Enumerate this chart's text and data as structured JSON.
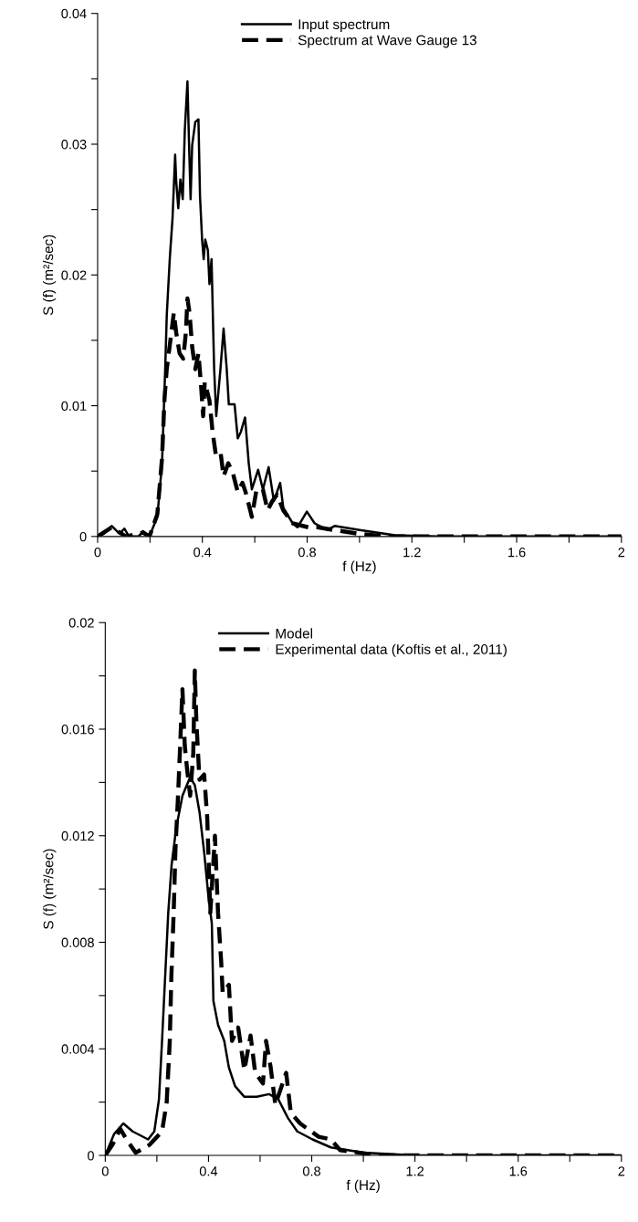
{
  "chart_data": [
    {
      "type": "line",
      "xlabel": "f (Hz)",
      "ylabel": "S (f) (m²/sec)",
      "xlim": [
        0,
        2
      ],
      "ylim": [
        0,
        0.04
      ],
      "xticks": [
        0,
        {
          "value": 0.2,
          "label": null
        },
        0.4,
        {
          "value": 0.6,
          "label": null
        },
        0.8,
        {
          "value": 1.0,
          "label": null
        },
        1.2,
        {
          "value": 1.4,
          "label": null
        },
        1.6,
        {
          "value": 1.8,
          "label": null
        },
        2
      ],
      "yticks": [
        0,
        {
          "value": 0.005,
          "label": null
        },
        0.01,
        {
          "value": 0.015,
          "label": null
        },
        0.02,
        {
          "value": 0.025,
          "label": null
        },
        0.03,
        {
          "value": 0.035,
          "label": null
        },
        0.04
      ],
      "legend": "top",
      "grid": false,
      "series": [
        {
          "name": "Input spectrum",
          "color": "#000000",
          "line_style": "solid",
          "x": [
            0,
            0.024,
            0.054,
            0.084,
            0.102,
            0.12,
            0.156,
            0.174,
            0.198,
            0.228,
            0.246,
            0.258,
            0.264,
            0.276,
            0.286,
            0.296,
            0.3,
            0.308,
            0.316,
            0.325,
            0.333,
            0.343,
            0.349,
            0.355,
            0.361,
            0.373,
            0.385,
            0.391,
            0.399,
            0.405,
            0.411,
            0.421,
            0.427,
            0.435,
            0.445,
            0.453,
            0.469,
            0.481,
            0.493,
            0.501,
            0.523,
            0.535,
            0.547,
            0.563,
            0.577,
            0.589,
            0.613,
            0.631,
            0.653,
            0.673,
            0.697,
            0.709,
            0.745,
            0.763,
            0.799,
            0.829,
            0.877,
            0.905,
            1.0,
            1.136,
            1.3,
            1.6,
            2.0
          ],
          "values": [
            0,
            0.0002,
            0.0008,
            0.0002,
            0.0006,
            0,
            0,
            0.0004,
            0,
            0.0015,
            0.0056,
            0.0128,
            0.0169,
            0.0214,
            0.0243,
            0.0292,
            0.0272,
            0.0251,
            0.0273,
            0.0258,
            0.0311,
            0.0348,
            0.0301,
            0.0258,
            0.0299,
            0.0317,
            0.0319,
            0.026,
            0.0227,
            0.0212,
            0.0227,
            0.0219,
            0.0193,
            0.0212,
            0.0128,
            0.0092,
            0.0128,
            0.0159,
            0.0128,
            0.0101,
            0.0101,
            0.0075,
            0.008,
            0.0091,
            0.0056,
            0.0036,
            0.0051,
            0.0036,
            0.0053,
            0.0027,
            0.0041,
            0.0022,
            0.001,
            0.0007,
            0.0019,
            0.001,
            0.0005,
            0.0008,
            0.0005,
            0.0001,
            0,
            0,
            0
          ]
        },
        {
          "name": "Spectrum at Wave Gauge 13",
          "color": "#000000",
          "line_style": "dashed",
          "x": [
            0,
            0.054,
            0.108,
            0.174,
            0.198,
            0.228,
            0.246,
            0.255,
            0.264,
            0.276,
            0.291,
            0.3,
            0.313,
            0.327,
            0.337,
            0.343,
            0.351,
            0.361,
            0.373,
            0.385,
            0.394,
            0.403,
            0.409,
            0.427,
            0.439,
            0.451,
            0.469,
            0.481,
            0.499,
            0.517,
            0.535,
            0.553,
            0.565,
            0.589,
            0.607,
            0.631,
            0.649,
            0.667,
            0.685,
            0.709,
            0.745,
            0.805,
            0.84,
            0.9,
            1.0,
            1.1,
            1.3,
            1.6,
            2.0
          ],
          "values": [
            0,
            0.0007,
            0,
            0.0003,
            0,
            0.0017,
            0.006,
            0.0104,
            0.0128,
            0.0147,
            0.0171,
            0.0156,
            0.014,
            0.0136,
            0.0156,
            0.0182,
            0.0171,
            0.0145,
            0.0128,
            0.014,
            0.0118,
            0.0092,
            0.0118,
            0.0104,
            0.008,
            0.0063,
            0.0065,
            0.0046,
            0.0056,
            0.0048,
            0.0034,
            0.0041,
            0.0034,
            0.0015,
            0.0036,
            0.0036,
            0.002,
            0.0027,
            0.0032,
            0.002,
            0.001,
            0.0007,
            0.0007,
            0.0005,
            0.0002,
            0,
            0,
            0,
            0
          ]
        }
      ]
    },
    {
      "type": "line",
      "xlabel": "f (Hz)",
      "ylabel": "S (f) (m²/sec)",
      "xlim": [
        0,
        2
      ],
      "ylim": [
        0,
        0.02
      ],
      "xticks": [
        0,
        {
          "value": 0.2,
          "label": null
        },
        0.4,
        {
          "value": 0.6,
          "label": null
        },
        0.8,
        {
          "value": 1.0,
          "label": null
        },
        1.2,
        {
          "value": 1.4,
          "label": null
        },
        1.6,
        {
          "value": 1.8,
          "label": null
        },
        2
      ],
      "yticks": [
        0,
        {
          "value": 0.002,
          "label": null
        },
        0.004,
        {
          "value": 0.006,
          "label": null
        },
        0.008,
        {
          "value": 0.01,
          "label": null
        },
        0.012,
        {
          "value": 0.014,
          "label": null
        },
        0.016,
        {
          "value": 0.018,
          "label": null
        },
        0.02
      ],
      "legend": "top",
      "grid": false,
      "series": [
        {
          "name": "Model",
          "color": "#000000",
          "line_style": "solid",
          "x": [
            0,
            0.034,
            0.07,
            0.106,
            0.166,
            0.19,
            0.208,
            0.22,
            0.232,
            0.244,
            0.257,
            0.275,
            0.299,
            0.329,
            0.347,
            0.365,
            0.383,
            0.401,
            0.413,
            0.419,
            0.437,
            0.461,
            0.479,
            0.503,
            0.539,
            0.587,
            0.635,
            0.671,
            0.708,
            0.744,
            0.803,
            0.874,
            1.0,
            1.2,
            1.6,
            2.0
          ],
          "values": [
            0,
            0.0008,
            0.0012,
            0.0009,
            0.0006,
            0.0009,
            0.0021,
            0.0043,
            0.0067,
            0.0091,
            0.0109,
            0.0123,
            0.0135,
            0.0142,
            0.0139,
            0.0129,
            0.0114,
            0.0096,
            0.0087,
            0.0058,
            0.0049,
            0.0043,
            0.0033,
            0.0026,
            0.0022,
            0.0022,
            0.0023,
            0.0021,
            0.0014,
            0.0009,
            0.0006,
            0.0003,
            0.0001,
            0,
            0,
            0
          ]
        },
        {
          "name": "Experimental data (Koftis et al., 2011)",
          "color": "#000000",
          "line_style": "dashed",
          "x": [
            0,
            0.028,
            0.058,
            0.082,
            0.118,
            0.172,
            0.22,
            0.238,
            0.25,
            0.256,
            0.265,
            0.272,
            0.281,
            0.289,
            0.299,
            0.308,
            0.317,
            0.329,
            0.341,
            0.347,
            0.353,
            0.365,
            0.383,
            0.395,
            0.407,
            0.425,
            0.437,
            0.449,
            0.455,
            0.479,
            0.491,
            0.515,
            0.539,
            0.563,
            0.581,
            0.611,
            0.623,
            0.641,
            0.659,
            0.701,
            0.719,
            0.755,
            0.827,
            0.874,
            0.91,
            1.06,
            1.3,
            1.6,
            2.0
          ],
          "values": [
            0,
            0.0004,
            0.001,
            0.0006,
            0.0001,
            0.0004,
            0.0009,
            0.002,
            0.0043,
            0.0067,
            0.0091,
            0.0115,
            0.0133,
            0.0151,
            0.0175,
            0.0154,
            0.0145,
            0.0135,
            0.0151,
            0.0182,
            0.0163,
            0.0141,
            0.0143,
            0.0127,
            0.0091,
            0.012,
            0.0091,
            0.0073,
            0.0061,
            0.0064,
            0.0043,
            0.0048,
            0.0032,
            0.0045,
            0.0031,
            0.0027,
            0.0043,
            0.0033,
            0.0019,
            0.0031,
            0.0016,
            0.0012,
            0.0007,
            0.0006,
            0.0002,
            0,
            0,
            0,
            0
          ]
        }
      ]
    }
  ]
}
